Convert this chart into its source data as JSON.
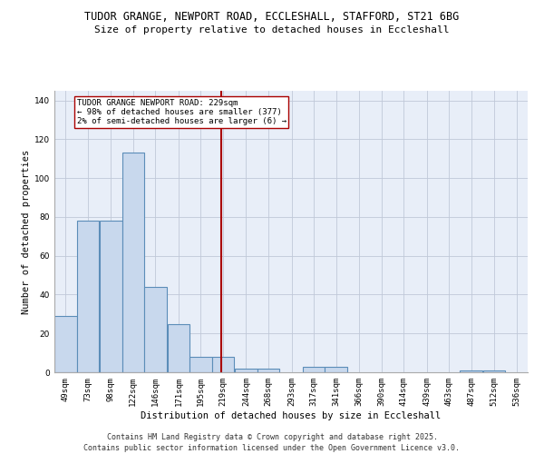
{
  "title_line1": "TUDOR GRANGE, NEWPORT ROAD, ECCLESHALL, STAFFORD, ST21 6BG",
  "title_line2": "Size of property relative to detached houses in Eccleshall",
  "xlabel": "Distribution of detached houses by size in Eccleshall",
  "ylabel": "Number of detached properties",
  "bins": [
    49,
    73,
    98,
    122,
    146,
    171,
    195,
    219,
    244,
    268,
    293,
    317,
    341,
    366,
    390,
    414,
    439,
    463,
    487,
    512,
    536
  ],
  "heights": [
    29,
    78,
    78,
    113,
    44,
    25,
    8,
    8,
    2,
    2,
    0,
    3,
    3,
    0,
    0,
    0,
    0,
    0,
    1,
    1,
    0
  ],
  "bar_color": "#c8d8ed",
  "bar_edge_color": "#5b8db8",
  "grid_color": "#c0c8d8",
  "bg_color": "#e8eef8",
  "vline_x": 229,
  "vline_color": "#aa0000",
  "annotation_title": "TUDOR GRANGE NEWPORT ROAD: 229sqm",
  "annotation_line2": "← 98% of detached houses are smaller (377)",
  "annotation_line3": "2% of semi-detached houses are larger (6) →",
  "ylim": [
    0,
    145
  ],
  "yticks": [
    0,
    20,
    40,
    60,
    80,
    100,
    120,
    140
  ],
  "footer_line1": "Contains HM Land Registry data © Crown copyright and database right 2025.",
  "footer_line2": "Contains public sector information licensed under the Open Government Licence v3.0.",
  "title_fontsize": 8.5,
  "subtitle_fontsize": 8,
  "axis_label_fontsize": 7.5,
  "tick_fontsize": 6.5,
  "footer_fontsize": 6,
  "annot_fontsize": 6.5
}
